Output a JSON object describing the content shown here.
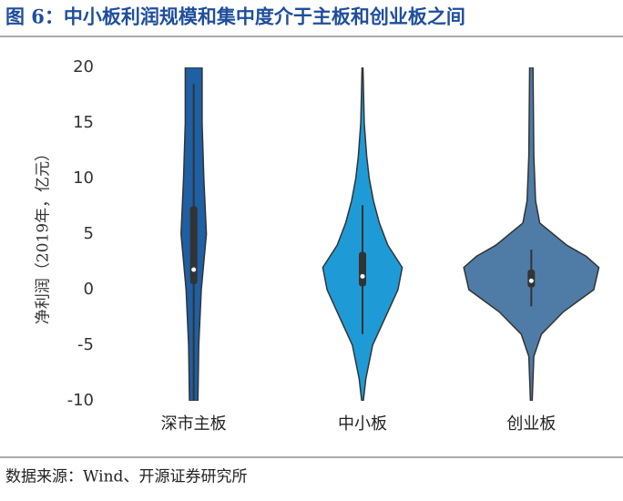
{
  "chart_data": {
    "type": "violin",
    "title": "图 6：中小板利润规模和集中度介于主板和创业板之间",
    "y_label": "净利润（2019年，亿元）",
    "source": "数据来源：Wind、开源证券研究所",
    "categories": [
      "深市主板",
      "中小板",
      "创业板"
    ],
    "ylim": [
      -10,
      20
    ],
    "yticks": [
      -10,
      -5,
      0,
      5,
      10,
      15,
      20
    ],
    "series": [
      {
        "color": "#1f5fa3",
        "violin": {
          "y": [
            -10,
            -5,
            0,
            5,
            10,
            15,
            20
          ],
          "width": [
            0.05,
            0.06,
            0.09,
            0.15,
            0.12,
            0.1,
            0.1
          ]
        },
        "box": {
          "whislo": -10,
          "q1": 0.5,
          "med": 1.8,
          "q3": 7.5,
          "whishi": 18.5
        }
      },
      {
        "color": "#1e9bd7",
        "violin": {
          "y": [
            -10,
            -8,
            -5,
            -2,
            0,
            2,
            4,
            6,
            8,
            10,
            12,
            15,
            20
          ],
          "width": [
            0.01,
            0.04,
            0.12,
            0.3,
            0.42,
            0.47,
            0.3,
            0.2,
            0.13,
            0.08,
            0.05,
            0.02,
            0.005
          ]
        },
        "box": {
          "whislo": -4,
          "q1": 0.3,
          "med": 1.2,
          "q3": 3.4,
          "whishi": 7.6
        }
      },
      {
        "color": "#4e7ca6",
        "violin": {
          "y": [
            -10,
            -6,
            -4,
            -2,
            0,
            2,
            3,
            4,
            6,
            8,
            12,
            20
          ],
          "width": [
            0.01,
            0.03,
            0.12,
            0.38,
            0.74,
            0.8,
            0.65,
            0.42,
            0.1,
            0.05,
            0.03,
            0.02
          ]
        },
        "box": {
          "whislo": -1.5,
          "q1": 0.2,
          "med": 0.8,
          "q3": 1.8,
          "whishi": 3.6
        }
      }
    ]
  }
}
